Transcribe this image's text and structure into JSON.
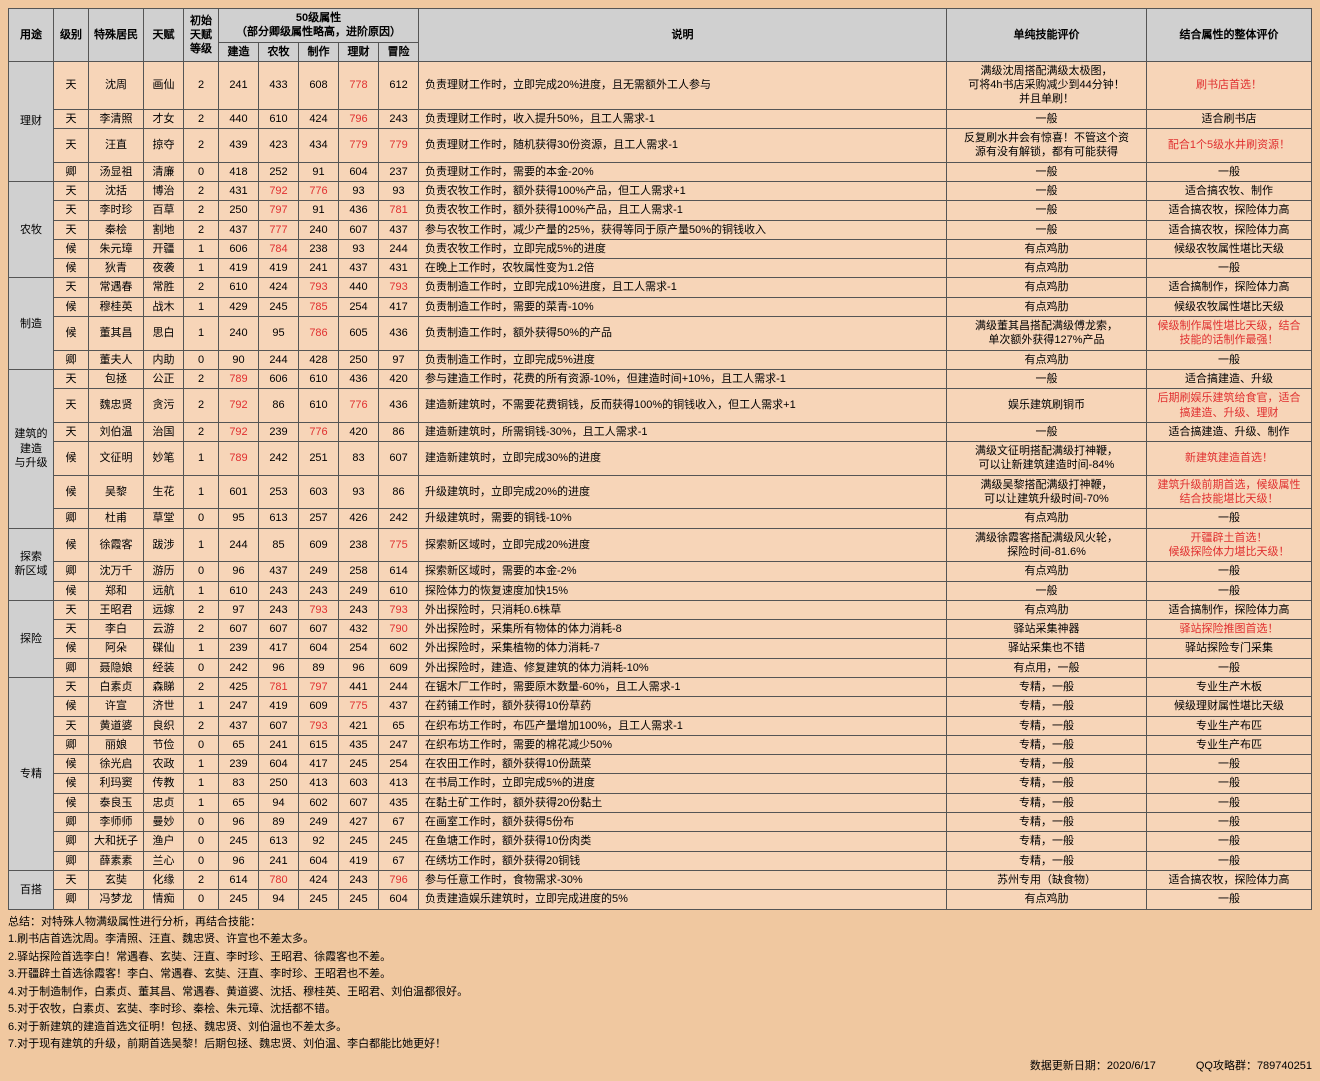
{
  "header": {
    "cols": [
      "用途",
      "级别",
      "特殊居民",
      "天赋",
      "初始\n天赋\n等级",
      "50级属性\n（部分卿级属性略高，进阶原因）",
      "说明",
      "单纯技能评价",
      "结合属性的整体评价"
    ],
    "sub": [
      "建造",
      "农牧",
      "制作",
      "理财",
      "冒险"
    ]
  },
  "colors": {
    "gray": "#d0d0d0",
    "peach": "#f7d5b8",
    "red": "#e03030",
    "bg": "#f0c8a0",
    "border": "#555"
  },
  "groups": [
    {
      "name": "理财",
      "rows": [
        {
          "lvl": "天",
          "nm": "沈周",
          "tf": "画仙",
          "ilv": "2",
          "a": [
            "241",
            "433",
            "608",
            "778",
            "612"
          ],
          "red": [
            3
          ],
          "desc": "负责理财工作时，立即完成20%进度，且无需额外工人参与",
          "eval": "满级沈周搭配满级太极图，\n可将4h书店采购减少到44分钟！\n并且单刷！",
          "over": "刷书店首选！",
          "ored": 1
        },
        {
          "lvl": "天",
          "nm": "李清照",
          "tf": "才女",
          "ilv": "2",
          "a": [
            "440",
            "610",
            "424",
            "796",
            "243"
          ],
          "red": [
            3
          ],
          "desc": "负责理财工作时，收入提升50%，且工人需求-1",
          "eval": "一般",
          "over": "适合刷书店"
        },
        {
          "lvl": "天",
          "nm": "汪直",
          "tf": "掠夺",
          "ilv": "2",
          "a": [
            "439",
            "423",
            "434",
            "779",
            "779"
          ],
          "red": [
            3,
            4
          ],
          "desc": "负责理财工作时，随机获得30份资源，且工人需求-1",
          "eval": "反复刷水井会有惊喜！不管这个资\n源有没有解锁，都有可能获得",
          "over": "配合1个5级水井刷资源！",
          "ored": 1
        },
        {
          "lvl": "卿",
          "nm": "汤显祖",
          "tf": "清廉",
          "ilv": "0",
          "a": [
            "418",
            "252",
            "91",
            "604",
            "237"
          ],
          "red": [],
          "desc": "负责理财工作时，需要的本金-20%",
          "eval": "一般",
          "over": "一般"
        }
      ]
    },
    {
      "name": "农牧",
      "rows": [
        {
          "lvl": "天",
          "nm": "沈括",
          "tf": "博治",
          "ilv": "2",
          "a": [
            "431",
            "792",
            "776",
            "93",
            "93"
          ],
          "red": [
            1,
            2
          ],
          "desc": "负责农牧工作时，额外获得100%产品，但工人需求+1",
          "eval": "一般",
          "over": "适合搞农牧、制作"
        },
        {
          "lvl": "天",
          "nm": "李时珍",
          "tf": "百草",
          "ilv": "2",
          "a": [
            "250",
            "797",
            "91",
            "436",
            "781"
          ],
          "red": [
            1,
            4
          ],
          "desc": "负责农牧工作时，额外获得100%产品，且工人需求-1",
          "eval": "一般",
          "over": "适合搞农牧，探险体力高"
        },
        {
          "lvl": "天",
          "nm": "秦桧",
          "tf": "割地",
          "ilv": "2",
          "a": [
            "437",
            "777",
            "240",
            "607",
            "437"
          ],
          "red": [
            1
          ],
          "desc": "参与农牧工作时，减少产量的25%，获得等同于原产量50%的铜钱收入",
          "eval": "一般",
          "over": "适合搞农牧，探险体力高"
        },
        {
          "lvl": "候",
          "nm": "朱元璋",
          "tf": "开疆",
          "ilv": "1",
          "a": [
            "606",
            "784",
            "238",
            "93",
            "244"
          ],
          "red": [
            1
          ],
          "desc": "负责农牧工作时，立即完成5%的进度",
          "eval": "有点鸡肋",
          "over": "候级农牧属性堪比天级"
        },
        {
          "lvl": "候",
          "nm": "狄青",
          "tf": "夜袭",
          "ilv": "1",
          "a": [
            "419",
            "419",
            "241",
            "437",
            "431"
          ],
          "red": [],
          "desc": "在晚上工作时，农牧属性变为1.2倍",
          "eval": "有点鸡肋",
          "over": "一般"
        }
      ]
    },
    {
      "name": "制造",
      "rows": [
        {
          "lvl": "天",
          "nm": "常遇春",
          "tf": "常胜",
          "ilv": "2",
          "a": [
            "610",
            "424",
            "793",
            "440",
            "793"
          ],
          "red": [
            2,
            4
          ],
          "desc": "负责制造工作时，立即完成10%进度，且工人需求-1",
          "eval": "有点鸡肋",
          "over": "适合搞制作，探险体力高"
        },
        {
          "lvl": "候",
          "nm": "穆桂英",
          "tf": "战木",
          "ilv": "1",
          "a": [
            "429",
            "245",
            "785",
            "254",
            "417"
          ],
          "red": [
            2
          ],
          "desc": "负责制造工作时，需要的菜青-10%",
          "eval": "有点鸡肋",
          "over": "候级农牧属性堪比天级"
        },
        {
          "lvl": "候",
          "nm": "董其昌",
          "tf": "思白",
          "ilv": "1",
          "a": [
            "240",
            "95",
            "786",
            "605",
            "436"
          ],
          "red": [
            2
          ],
          "desc": "负责制造工作时，额外获得50%的产品",
          "eval": "满级董其昌搭配满级傅龙索，\n单次额外获得127%产品",
          "over": "候级制作属性堪比天级，结合\n技能的话制作最强！",
          "ored": 1
        },
        {
          "lvl": "卿",
          "nm": "董夫人",
          "tf": "内助",
          "ilv": "0",
          "a": [
            "90",
            "244",
            "428",
            "250",
            "97"
          ],
          "red": [],
          "desc": "负责制造工作时，立即完成5%进度",
          "eval": "有点鸡肋",
          "over": "一般"
        }
      ]
    },
    {
      "name": "建筑的\n建造\n与升级",
      "rows": [
        {
          "lvl": "天",
          "nm": "包拯",
          "tf": "公正",
          "ilv": "2",
          "a": [
            "789",
            "606",
            "610",
            "436",
            "420"
          ],
          "red": [
            0
          ],
          "desc": "参与建造工作时，花费的所有资源-10%，但建造时间+10%，且工人需求-1",
          "eval": "一般",
          "over": "适合搞建造、升级"
        },
        {
          "lvl": "天",
          "nm": "魏忠贤",
          "tf": "贪污",
          "ilv": "2",
          "a": [
            "792",
            "86",
            "610",
            "776",
            "436"
          ],
          "red": [
            0,
            3
          ],
          "desc": "建造新建筑时，不需要花费铜钱，反而获得100%的铜钱收入，但工人需求+1",
          "eval": "娱乐建筑刷铜币",
          "over": "后期刷娱乐建筑给食官，适合\n搞建造、升级、理财",
          "ored": 1
        },
        {
          "lvl": "天",
          "nm": "刘伯温",
          "tf": "治国",
          "ilv": "2",
          "a": [
            "792",
            "239",
            "776",
            "420",
            "86"
          ],
          "red": [
            0,
            2
          ],
          "desc": "建造新建筑时，所需铜钱-30%，且工人需求-1",
          "eval": "一般",
          "over": "适合搞建造、升级、制作"
        },
        {
          "lvl": "候",
          "nm": "文征明",
          "tf": "妙笔",
          "ilv": "1",
          "a": [
            "789",
            "242",
            "251",
            "83",
            "607"
          ],
          "red": [
            0
          ],
          "desc": "建造新建筑时，立即完成30%的进度",
          "eval": "满级文征明搭配满级打神鞭，\n可以让新建筑建造时间-84%",
          "over": "新建筑建造首选！",
          "ored": 1
        },
        {
          "lvl": "候",
          "nm": "吴黎",
          "tf": "生花",
          "ilv": "1",
          "a": [
            "601",
            "253",
            "603",
            "93",
            "86"
          ],
          "red": [],
          "desc": "升级建筑时，立即完成20%的进度",
          "eval": "满级吴黎搭配满级打神鞭，\n可以让建筑升级时间-70%",
          "over": "建筑升级前期首选，候级属性\n结合技能堪比天级！",
          "ored": 1
        },
        {
          "lvl": "卿",
          "nm": "杜甫",
          "tf": "草堂",
          "ilv": "0",
          "a": [
            "95",
            "613",
            "257",
            "426",
            "242"
          ],
          "red": [],
          "desc": "升级建筑时，需要的铜钱-10%",
          "eval": "有点鸡肋",
          "over": "一般"
        }
      ]
    },
    {
      "name": "探索\n新区域",
      "rows": [
        {
          "lvl": "候",
          "nm": "徐霞客",
          "tf": "跋涉",
          "ilv": "1",
          "a": [
            "244",
            "85",
            "609",
            "238",
            "775"
          ],
          "red": [
            4
          ],
          "desc": "探索新区域时，立即完成20%进度",
          "eval": "满级徐霞客搭配满级风火轮，\n探险时间-81.6%",
          "over": "开疆辟土首选！\n候级探险体力堪比天级！",
          "ored": 1
        },
        {
          "lvl": "卿",
          "nm": "沈万千",
          "tf": "游历",
          "ilv": "0",
          "a": [
            "96",
            "437",
            "249",
            "258",
            "614"
          ],
          "red": [],
          "desc": "探索新区域时，需要的本金-2%",
          "eval": "有点鸡肋",
          "over": "一般"
        },
        {
          "lvl": "候",
          "nm": "郑和",
          "tf": "远航",
          "ilv": "1",
          "a": [
            "610",
            "243",
            "243",
            "249",
            "610"
          ],
          "red": [],
          "desc": "探险体力的恢复速度加快15%",
          "eval": "一般",
          "over": "一般"
        }
      ]
    },
    {
      "name": "探险",
      "rows": [
        {
          "lvl": "天",
          "nm": "王昭君",
          "tf": "远嫁",
          "ilv": "2",
          "a": [
            "97",
            "243",
            "793",
            "243",
            "793"
          ],
          "red": [
            2,
            4
          ],
          "desc": "外出探险时，只消耗0.6株草",
          "eval": "有点鸡肋",
          "over": "适合搞制作，探险体力高"
        },
        {
          "lvl": "天",
          "nm": "李白",
          "tf": "云游",
          "ilv": "2",
          "a": [
            "607",
            "607",
            "607",
            "432",
            "790"
          ],
          "red": [
            4
          ],
          "desc": "外出探险时，采集所有物体的体力消耗-8",
          "eval": "驿站采集神器",
          "over": "驿站探险推图首选！",
          "ored": 1
        },
        {
          "lvl": "候",
          "nm": "阿朵",
          "tf": "碟仙",
          "ilv": "1",
          "a": [
            "239",
            "417",
            "604",
            "254",
            "602"
          ],
          "red": [],
          "desc": "外出探险时，采集植物的体力消耗-7",
          "eval": "驿站采集也不错",
          "over": "驿站探险专门采集"
        },
        {
          "lvl": "卿",
          "nm": "聂隐娘",
          "tf": "经装",
          "ilv": "0",
          "a": [
            "242",
            "96",
            "89",
            "96",
            "609"
          ],
          "red": [],
          "desc": "外出探险时，建造、修复建筑的体力消耗-10%",
          "eval": "有点用，一般",
          "over": "一般"
        }
      ]
    },
    {
      "name": "专精",
      "rows": [
        {
          "lvl": "天",
          "nm": "白素贞",
          "tf": "森睇",
          "ilv": "2",
          "a": [
            "425",
            "781",
            "797",
            "441",
            "244"
          ],
          "red": [
            1,
            2
          ],
          "desc": "在锯木厂工作时，需要原木数量-60%，且工人需求-1",
          "eval": "专精，一般",
          "over": "专业生产木板"
        },
        {
          "lvl": "候",
          "nm": "许宣",
          "tf": "济世",
          "ilv": "1",
          "a": [
            "247",
            "419",
            "609",
            "775",
            "437"
          ],
          "red": [
            3
          ],
          "desc": "在药铺工作时，额外获得10份草药",
          "eval": "专精，一般",
          "over": "候级理财属性堪比天级"
        },
        {
          "lvl": "天",
          "nm": "黄道婆",
          "tf": "良织",
          "ilv": "2",
          "a": [
            "437",
            "607",
            "793",
            "421",
            "65"
          ],
          "red": [
            2
          ],
          "desc": "在织布坊工作时，布匹产量增加100%，且工人需求-1",
          "eval": "专精，一般",
          "over": "专业生产布匹"
        },
        {
          "lvl": "卿",
          "nm": "丽娘",
          "tf": "节俭",
          "ilv": "0",
          "a": [
            "65",
            "241",
            "615",
            "435",
            "247"
          ],
          "red": [],
          "desc": "在织布坊工作时，需要的棉花减少50%",
          "eval": "专精，一般",
          "over": "专业生产布匹"
        },
        {
          "lvl": "候",
          "nm": "徐光启",
          "tf": "农政",
          "ilv": "1",
          "a": [
            "239",
            "604",
            "417",
            "245",
            "254"
          ],
          "red": [],
          "desc": "在农田工作时，额外获得10份蔬菜",
          "eval": "专精，一般",
          "over": "一般"
        },
        {
          "lvl": "候",
          "nm": "利玛窦",
          "tf": "传教",
          "ilv": "1",
          "a": [
            "83",
            "250",
            "413",
            "603",
            "413"
          ],
          "red": [],
          "desc": "在书局工作时，立即完成5%的进度",
          "eval": "专精，一般",
          "over": "一般"
        },
        {
          "lvl": "候",
          "nm": "泰良玉",
          "tf": "忠贞",
          "ilv": "1",
          "a": [
            "65",
            "94",
            "602",
            "607",
            "435"
          ],
          "red": [],
          "desc": "在黏土矿工作时，额外获得20份黏土",
          "eval": "专精，一般",
          "over": "一般"
        },
        {
          "lvl": "卿",
          "nm": "李师师",
          "tf": "曼妙",
          "ilv": "0",
          "a": [
            "96",
            "89",
            "249",
            "427",
            "67"
          ],
          "red": [],
          "desc": "在画室工作时，额外获得5份布",
          "eval": "专精，一般",
          "over": "一般"
        },
        {
          "lvl": "卿",
          "nm": "大和抚子",
          "tf": "渔户",
          "ilv": "0",
          "a": [
            "245",
            "613",
            "92",
            "245",
            "245"
          ],
          "red": [],
          "desc": "在鱼塘工作时，额外获得10份肉类",
          "eval": "专精，一般",
          "over": "一般"
        },
        {
          "lvl": "卿",
          "nm": "薛素素",
          "tf": "兰心",
          "ilv": "0",
          "a": [
            "96",
            "241",
            "604",
            "419",
            "67"
          ],
          "red": [],
          "desc": "在绣坊工作时，额外获得20铜钱",
          "eval": "专精，一般",
          "over": "一般"
        }
      ]
    },
    {
      "name": "百搭",
      "rows": [
        {
          "lvl": "天",
          "nm": "玄奘",
          "tf": "化缘",
          "ilv": "2",
          "a": [
            "614",
            "780",
            "424",
            "243",
            "796"
          ],
          "red": [
            1,
            4
          ],
          "desc": "参与任意工作时，食物需求-30%",
          "eval": "苏州专用（缺食物）",
          "over": "适合搞农牧，探险体力高"
        },
        {
          "lvl": "卿",
          "nm": "冯梦龙",
          "tf": "情痴",
          "ilv": "0",
          "a": [
            "245",
            "94",
            "245",
            "245",
            "604"
          ],
          "red": [],
          "desc": "负责建造娱乐建筑时，立即完成进度的5%",
          "eval": "有点鸡肋",
          "over": "一般"
        }
      ]
    }
  ],
  "summary": {
    "title": "总结：对特殊人物满级属性进行分析，再结合技能：",
    "title_red": 0,
    "lines": [
      "1.刷书店首选沈周。李清照、汪直、魏忠贤、许宣也不差太多。",
      "2.驿站探险首选李白！常遇春、玄奘、汪直、李时珍、王昭君、徐霞客也不差。",
      "3.开疆辟土首选徐霞客！李白、常遇春、玄奘、汪直、李时珍、王昭君也不差。",
      "4.对于制造制作，白素贞、董其昌、常遇春、黄道婆、沈括、穆桂英、王昭君、刘伯温都很好。",
      "5.对于农牧，白素贞、玄奘、李时珍、秦桧、朱元璋、沈括都不错。",
      "6.对于新建筑的建造首选文征明！包拯、魏忠贤、刘伯温也不差太多。",
      "7.对于现有建筑的升级，前期首选吴黎！后期包拯、魏忠贤、刘伯温、李白都能比她更好！"
    ]
  },
  "footer": {
    "date": "数据更新日期：2020/6/17",
    "qq": "QQ攻略群：789740251"
  }
}
